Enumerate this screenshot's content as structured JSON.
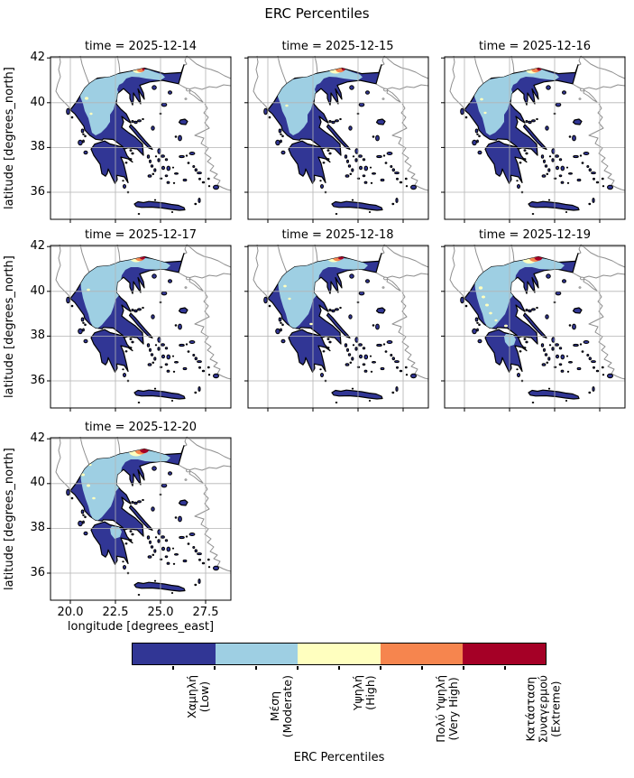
{
  "figure_title": "ERC Percentiles",
  "panels": [
    {
      "title": "time = 2025-12-14",
      "date": "2025-12-14",
      "visible_max_category": "Πολύ Υψηλή (Very High)"
    },
    {
      "title": "time = 2025-12-15",
      "date": "2025-12-15",
      "visible_max_category": "Κατάσταση Συναγερμού (Extreme)"
    },
    {
      "title": "time = 2025-12-16",
      "date": "2025-12-16",
      "visible_max_category": "Κατάσταση Συναγερμού (Extreme)"
    },
    {
      "title": "time = 2025-12-17",
      "date": "2025-12-17",
      "visible_max_category": "Κατάσταση Συναγερμού (Extreme)"
    },
    {
      "title": "time = 2025-12-18",
      "date": "2025-12-18",
      "visible_max_category": "Κατάσταση Συναγερμού (Extreme)"
    },
    {
      "title": "time = 2025-12-19",
      "date": "2025-12-19",
      "visible_max_category": "Κατάσταση Συναγερμού (Extreme)"
    },
    {
      "title": "time = 2025-12-20",
      "date": "2025-12-20",
      "visible_max_category": "Κατάσταση Συναγερμού (Extreme)"
    }
  ],
  "axes": {
    "xlabel": "longitude [degrees_east]",
    "ylabel": "latitude [degrees_north]",
    "xticks": [
      "20.0",
      "22.5",
      "25.0",
      "27.5"
    ],
    "yticks": [
      "42",
      "40",
      "38",
      "36"
    ]
  },
  "colorbar": {
    "label": "ERC Percentiles",
    "categories": [
      {
        "label": "Χαμηλή (Low)",
        "lines": [
          "Χαμηλή",
          "(Low)"
        ],
        "color": "#313695"
      },
      {
        "label": "Μέση (Moderate)",
        "lines": [
          "Μέση",
          "(Moderate)"
        ],
        "color": "#9ecfe3"
      },
      {
        "label": "Υψηλή (High)",
        "lines": [
          "Υψηλή",
          "(High)"
        ],
        "color": "#ffffbf"
      },
      {
        "label": "Πολύ Υψηλή (Very High)",
        "lines": [
          "Πολύ Υψηλή",
          "(Very High)"
        ],
        "color": "#f6854e"
      },
      {
        "label": "Κατάσταση Συναγερμού (Extreme)",
        "lines": [
          "Κατάσταση",
          "Συναγερμού",
          "(Extreme)"
        ],
        "color": "#a50026"
      }
    ]
  },
  "chart_data": {
    "type": "heatmap",
    "title": "ERC Percentiles",
    "facet_titles": [
      "time = 2025-12-14",
      "time = 2025-12-15",
      "time = 2025-12-16",
      "time = 2025-12-17",
      "time = 2025-12-18",
      "time = 2025-12-19",
      "time = 2025-12-20"
    ],
    "xlabel": "longitude [degrees_east]",
    "ylabel": "latitude [degrees_north]",
    "xlim": [
      18.9,
      28.9
    ],
    "ylim": [
      34.8,
      42.05
    ],
    "xticks": [
      20.0,
      22.5,
      25.0,
      27.5
    ],
    "yticks": [
      42,
      40,
      38,
      36
    ],
    "grid": true,
    "legend_position": "horizontal colorbar at bottom",
    "categories": [
      "Χαμηλή (Low)",
      "Μέση (Moderate)",
      "Υψηλή (High)",
      "Πολύ Υψηλή (Very High)",
      "Κατάσταση Συναγερμού (Extreme)"
    ],
    "colors": [
      "#313695",
      "#9ecfe3",
      "#ffffbf",
      "#f6854e",
      "#a50026"
    ],
    "summary": "Seven daily categorical ERC-percentile maps of Greece (2025-12-14 to 2025-12-20). Most of the country is in the lowest class (dark blue); the Moderate class (light blue) covers NW and central mainland Greece and expands through the week; small High (pale yellow) patches appear over Epirus/Thessaly; a persistent Very High / Extreme hotspot sits on the northern border near 24.2E, 41.4N, largest on 2025-12-19 and 2025-12-20."
  }
}
